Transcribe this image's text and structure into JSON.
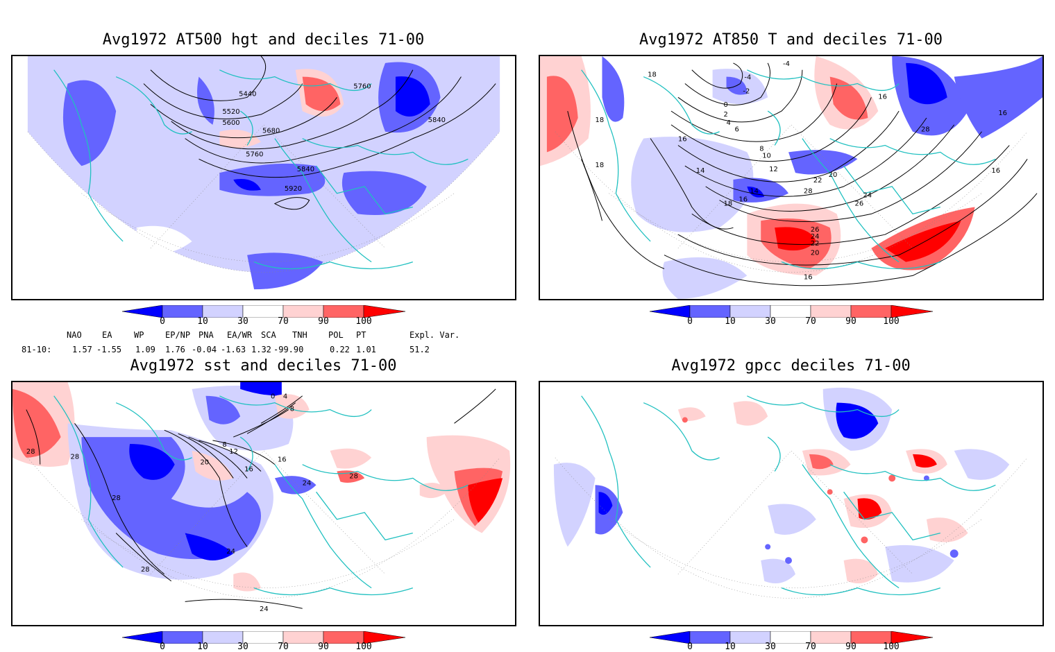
{
  "panels": [
    {
      "title": "Avg1972 AT500 hgt and deciles 71-00",
      "contour_labels": [
        "5440",
        "5520",
        "5600",
        "5680",
        "5760",
        "5760",
        "5840",
        "5840",
        "5920"
      ]
    },
    {
      "title": "Avg1972 AT850 T and deciles 71-00",
      "contour_labels": [
        "-4",
        "-4",
        "-2",
        "0",
        "2",
        "4",
        "6",
        "8",
        "10",
        "12",
        "14",
        "14",
        "16",
        "16",
        "16",
        "16",
        "16",
        "16",
        "18",
        "18",
        "18",
        "18",
        "20",
        "20",
        "22",
        "22",
        "24",
        "24",
        "26",
        "26",
        "28",
        "28"
      ]
    },
    {
      "title": "Avg1972 sst and deciles 71-00",
      "contour_labels": [
        "0",
        "4",
        "8",
        "8",
        "12",
        "16",
        "16",
        "20",
        "24",
        "24",
        "24",
        "28",
        "28",
        "28",
        "28",
        "28"
      ]
    },
    {
      "title": "Avg1972 gpcc deciles 71-00",
      "contour_labels": []
    }
  ],
  "colorbar": {
    "ticks": [
      "0",
      "10",
      "30",
      "70",
      "90",
      "100"
    ],
    "colors": [
      "#0000ff",
      "#6464ff",
      "#d2d2ff",
      "#ffffff",
      "#ffd2d2",
      "#ff6464",
      "#ff0000"
    ]
  },
  "indices": {
    "headers": [
      "NAO",
      "EA",
      "WP",
      "EP/NP",
      "PNA",
      "EA/WR",
      "SCA",
      "TNH",
      "POL",
      "PT",
      "Expl. Var."
    ],
    "period": "81-10:",
    "values": [
      "1.57",
      "-1.55",
      "1.09",
      "1.76",
      "-0.04",
      "-1.63",
      "1.32",
      "-99.90",
      "0.22",
      "1.01",
      "51.2"
    ]
  },
  "colors": {
    "coast": "#20c0c0",
    "strong_blue": "#0000ff",
    "mid_blue": "#6464ff",
    "light_blue": "#d2d2ff",
    "light_red": "#ffd2d2",
    "mid_red": "#ff6464",
    "strong_red": "#ff0000"
  }
}
